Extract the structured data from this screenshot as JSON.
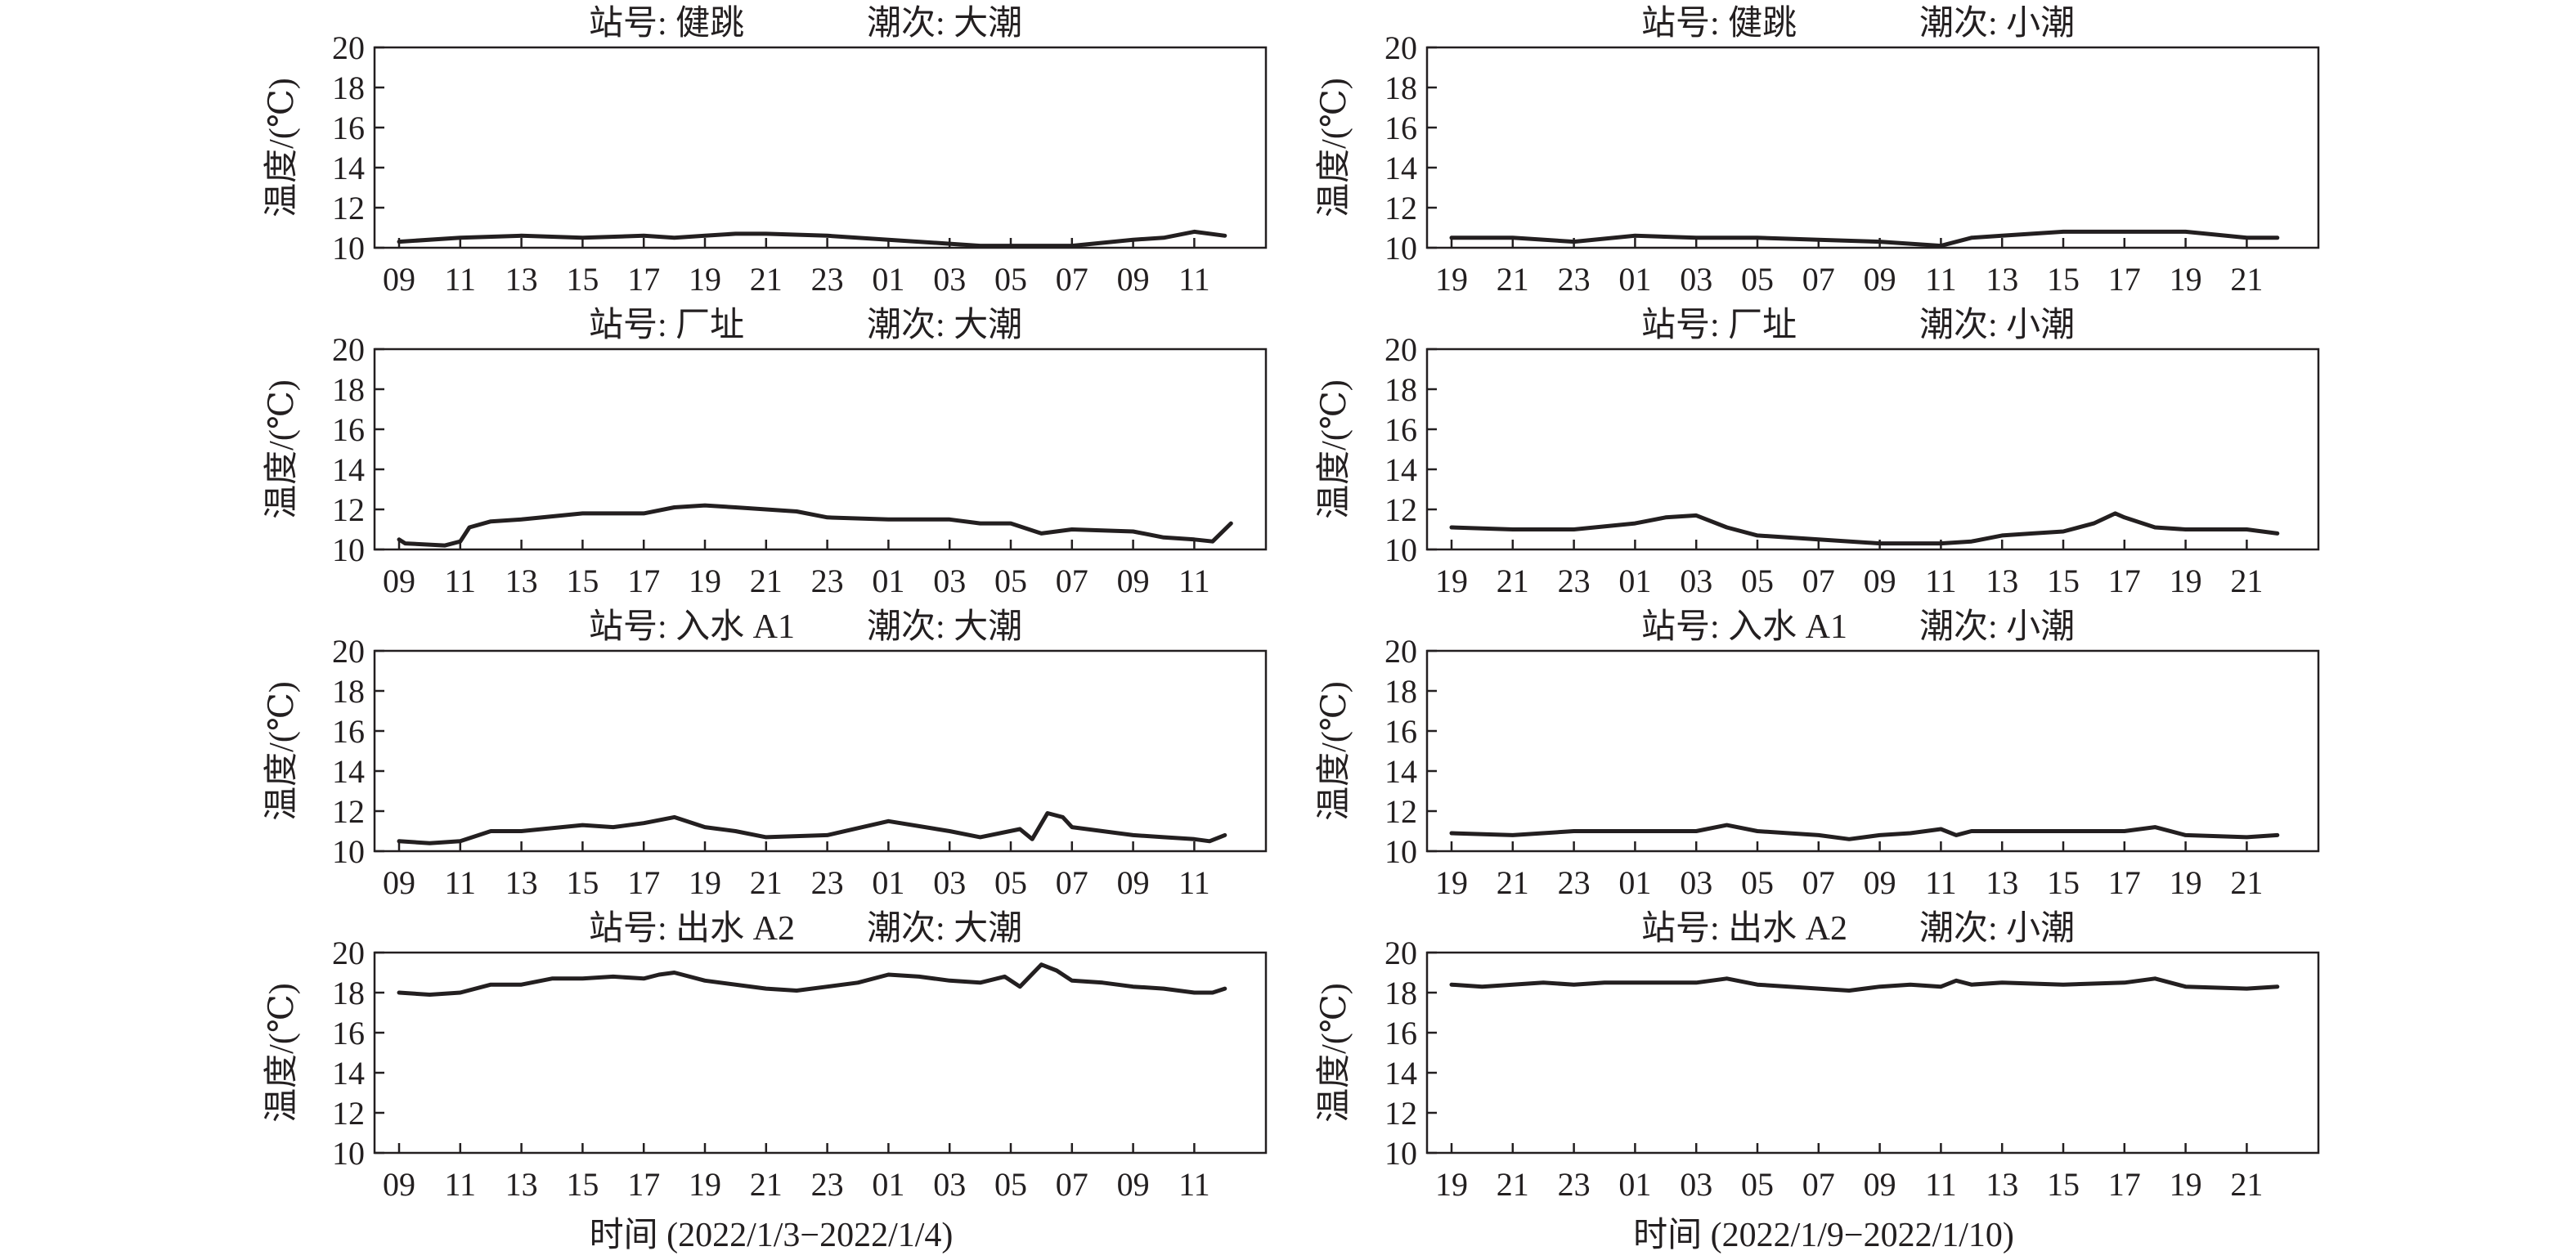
{
  "chart_data": [
    {
      "type": "line",
      "panel": "jianTiao-spring",
      "station_label": "站号: 健跳",
      "tide_label": "潮次: 大潮",
      "ylabel": "温度/(℃)",
      "xlabel": "",
      "ylim": [
        10,
        20
      ],
      "yticks": [
        "10",
        "12",
        "14",
        "16",
        "18",
        "20"
      ],
      "xticks": [
        "09",
        "11",
        "13",
        "15",
        "17",
        "19",
        "21",
        "23",
        "01",
        "03",
        "05",
        "07",
        "09",
        "11"
      ],
      "x": [
        0,
        2,
        4,
        6,
        8,
        9,
        10,
        11,
        12,
        14,
        16,
        18,
        19,
        20,
        22,
        24,
        25,
        26,
        27
      ],
      "values": [
        10.3,
        10.5,
        10.6,
        10.5,
        10.6,
        10.5,
        10.6,
        10.7,
        10.7,
        10.6,
        10.4,
        10.2,
        10.1,
        10.1,
        10.1,
        10.4,
        10.5,
        10.8,
        10.6
      ]
    },
    {
      "type": "line",
      "panel": "jianTiao-neap",
      "station_label": "站号: 健跳",
      "tide_label": "潮次: 小潮",
      "ylabel": "温度/(℃)",
      "xlabel": "",
      "ylim": [
        10,
        20
      ],
      "yticks": [
        "10",
        "12",
        "14",
        "16",
        "18",
        "20"
      ],
      "xticks": [
        "19",
        "21",
        "23",
        "01",
        "03",
        "05",
        "07",
        "09",
        "11",
        "13",
        "15",
        "17",
        "19",
        "21"
      ],
      "x": [
        0,
        2,
        4,
        6,
        8,
        10,
        12,
        14,
        16,
        17,
        18,
        20,
        22,
        24,
        26,
        27
      ],
      "values": [
        10.5,
        10.5,
        10.3,
        10.6,
        10.5,
        10.5,
        10.4,
        10.3,
        10.1,
        10.5,
        10.6,
        10.8,
        10.8,
        10.8,
        10.5,
        10.5
      ]
    },
    {
      "type": "line",
      "panel": "changZhi-spring",
      "station_label": "站号: 厂址",
      "tide_label": "潮次: 大潮",
      "ylabel": "温度/(℃)",
      "xlabel": "",
      "ylim": [
        10,
        20
      ],
      "yticks": [
        "10",
        "12",
        "14",
        "16",
        "18",
        "20"
      ],
      "xticks": [
        "09",
        "11",
        "13",
        "15",
        "17",
        "19",
        "21",
        "23",
        "01",
        "03",
        "05",
        "07",
        "09",
        "11"
      ],
      "x": [
        0,
        0.2,
        1.5,
        2.0,
        2.3,
        3,
        4,
        6,
        8,
        9,
        10,
        11,
        12,
        13,
        14,
        16,
        18,
        19,
        20,
        21,
        22,
        24,
        25,
        26,
        26.6,
        27.2
      ],
      "values": [
        10.5,
        10.3,
        10.2,
        10.4,
        11.1,
        11.4,
        11.5,
        11.8,
        11.8,
        12.1,
        12.2,
        12.1,
        12.0,
        11.9,
        11.6,
        11.5,
        11.5,
        11.3,
        11.3,
        10.8,
        11.0,
        10.9,
        10.6,
        10.5,
        10.4,
        11.3
      ]
    },
    {
      "type": "line",
      "panel": "changZhi-neap",
      "station_label": "站号: 厂址",
      "tide_label": "潮次: 小潮",
      "ylabel": "温度/(℃)",
      "xlabel": "",
      "ylim": [
        10,
        20
      ],
      "yticks": [
        "10",
        "12",
        "14",
        "16",
        "18",
        "20"
      ],
      "xticks": [
        "19",
        "21",
        "23",
        "01",
        "03",
        "05",
        "07",
        "09",
        "11",
        "13",
        "15",
        "17",
        "19",
        "21"
      ],
      "x": [
        0,
        2,
        4,
        6,
        7,
        8,
        9,
        10,
        12,
        14,
        16,
        17,
        18,
        19,
        20,
        21,
        21.7,
        22,
        23,
        24,
        26,
        27
      ],
      "values": [
        11.1,
        11.0,
        11.0,
        11.3,
        11.6,
        11.7,
        11.1,
        10.7,
        10.5,
        10.3,
        10.3,
        10.4,
        10.7,
        10.8,
        10.9,
        11.3,
        11.8,
        11.6,
        11.1,
        11.0,
        11.0,
        10.8
      ]
    },
    {
      "type": "line",
      "panel": "ruShuiA1-spring",
      "station_label": "站号: 入水 A1",
      "tide_label": "潮次: 大潮",
      "ylabel": "温度/(℃)",
      "xlabel": "",
      "ylim": [
        10,
        20
      ],
      "yticks": [
        "10",
        "12",
        "14",
        "16",
        "18",
        "20"
      ],
      "xticks": [
        "09",
        "11",
        "13",
        "15",
        "17",
        "19",
        "21",
        "23",
        "01",
        "03",
        "05",
        "07",
        "09",
        "11"
      ],
      "x": [
        0,
        1,
        2,
        3,
        4,
        6,
        7,
        8,
        9,
        10,
        11,
        12,
        14,
        16,
        18,
        19,
        20.3,
        20.7,
        21.2,
        21.7,
        22,
        23,
        24,
        25,
        26,
        26.5,
        27
      ],
      "values": [
        10.5,
        10.4,
        10.5,
        11.0,
        11.0,
        11.3,
        11.2,
        11.4,
        11.7,
        11.2,
        11.0,
        10.7,
        10.8,
        11.5,
        11.0,
        10.7,
        11.1,
        10.6,
        11.9,
        11.7,
        11.2,
        11.0,
        10.8,
        10.7,
        10.6,
        10.5,
        10.8
      ]
    },
    {
      "type": "line",
      "panel": "ruShuiA1-neap",
      "station_label": "站号: 入水 A1",
      "tide_label": "潮次: 小潮",
      "ylabel": "温度/(℃)",
      "xlabel": "",
      "ylim": [
        10,
        20
      ],
      "yticks": [
        "10",
        "12",
        "14",
        "16",
        "18",
        "20"
      ],
      "xticks": [
        "19",
        "21",
        "23",
        "01",
        "03",
        "05",
        "07",
        "09",
        "11",
        "13",
        "15",
        "17",
        "19",
        "21"
      ],
      "x": [
        0,
        2,
        4,
        6,
        8,
        9,
        10,
        12,
        13,
        14,
        15,
        16,
        16.5,
        17,
        18,
        20,
        22,
        23,
        24,
        26,
        27
      ],
      "values": [
        10.9,
        10.8,
        11.0,
        11.0,
        11.0,
        11.3,
        11.0,
        10.8,
        10.6,
        10.8,
        10.9,
        11.1,
        10.8,
        11.0,
        11.0,
        11.0,
        11.0,
        11.2,
        10.8,
        10.7,
        10.8
      ]
    },
    {
      "type": "line",
      "panel": "chuShuiA2-spring",
      "station_label": "站号: 出水 A2",
      "tide_label": "潮次: 大潮",
      "ylabel": "温度/(℃)",
      "xlabel": "时间 (2022/1/3−2022/1/4)",
      "ylim": [
        10,
        20
      ],
      "yticks": [
        "10",
        "12",
        "14",
        "16",
        "18",
        "20"
      ],
      "xticks": [
        "09",
        "11",
        "13",
        "15",
        "17",
        "19",
        "21",
        "23",
        "01",
        "03",
        "05",
        "07",
        "09",
        "11"
      ],
      "x": [
        0,
        1,
        2,
        3,
        4,
        5,
        6,
        7,
        8,
        8.5,
        9,
        10,
        12,
        13,
        14,
        15,
        16,
        17,
        18,
        19,
        19.8,
        20.3,
        21,
        21.5,
        22,
        23,
        24,
        25,
        26,
        26.6,
        27
      ],
      "values": [
        18.0,
        17.9,
        18.0,
        18.4,
        18.4,
        18.7,
        18.7,
        18.8,
        18.7,
        18.9,
        19.0,
        18.6,
        18.2,
        18.1,
        18.3,
        18.5,
        18.9,
        18.8,
        18.6,
        18.5,
        18.8,
        18.3,
        19.4,
        19.1,
        18.6,
        18.5,
        18.3,
        18.2,
        18.0,
        18.0,
        18.2
      ]
    },
    {
      "type": "line",
      "panel": "chuShuiA2-neap",
      "station_label": "站号: 出水 A2",
      "tide_label": "潮次: 小潮",
      "ylabel": "温度/(℃)",
      "xlabel": "时间 (2022/1/9−2022/1/10)",
      "ylim": [
        10,
        20
      ],
      "yticks": [
        "10",
        "12",
        "14",
        "16",
        "18",
        "20"
      ],
      "xticks": [
        "19",
        "21",
        "23",
        "01",
        "03",
        "05",
        "07",
        "09",
        "11",
        "13",
        "15",
        "17",
        "19",
        "21"
      ],
      "x": [
        0,
        1,
        2,
        3,
        4,
        5,
        6,
        8,
        9,
        10,
        12,
        13,
        14,
        15,
        16,
        16.5,
        17,
        18,
        20,
        22,
        23,
        24,
        26,
        27
      ],
      "values": [
        18.4,
        18.3,
        18.4,
        18.5,
        18.4,
        18.5,
        18.5,
        18.5,
        18.7,
        18.4,
        18.2,
        18.1,
        18.3,
        18.4,
        18.3,
        18.6,
        18.4,
        18.5,
        18.4,
        18.5,
        18.7,
        18.3,
        18.2,
        18.3
      ]
    }
  ]
}
